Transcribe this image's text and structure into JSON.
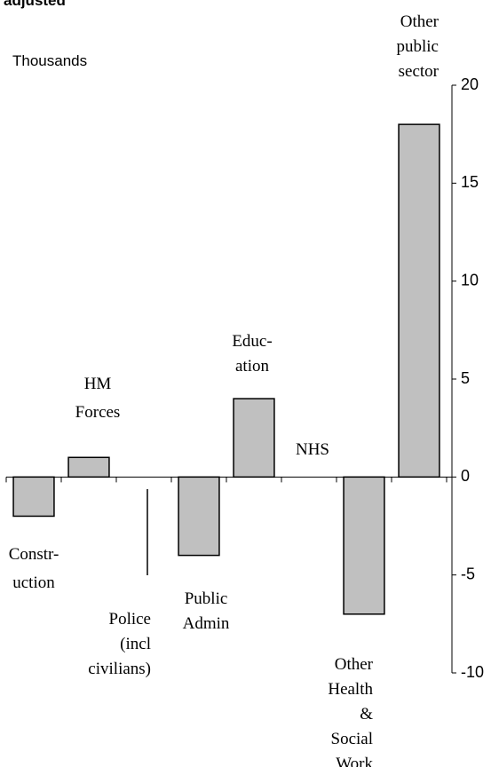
{
  "chart_data": {
    "type": "bar",
    "title": "adjusted",
    "y_label": "Thousands",
    "categories": [
      "Constr-\nuction",
      "HM\nForces",
      "Police\n(incl\ncivilians)",
      "Public\nAdmin",
      "Educ-\nation",
      "NHS",
      "Other\nHealth\n&\nSocial\nWork",
      "Other\npublic\nsector"
    ],
    "values": [
      -2,
      1,
      0,
      -4,
      4,
      0,
      -7,
      18
    ],
    "color": "#c0c0c0",
    "ylim": [
      -10,
      20
    ],
    "yticks": [
      -10,
      -5,
      0,
      5,
      10,
      15,
      20
    ],
    "grid": false
  }
}
